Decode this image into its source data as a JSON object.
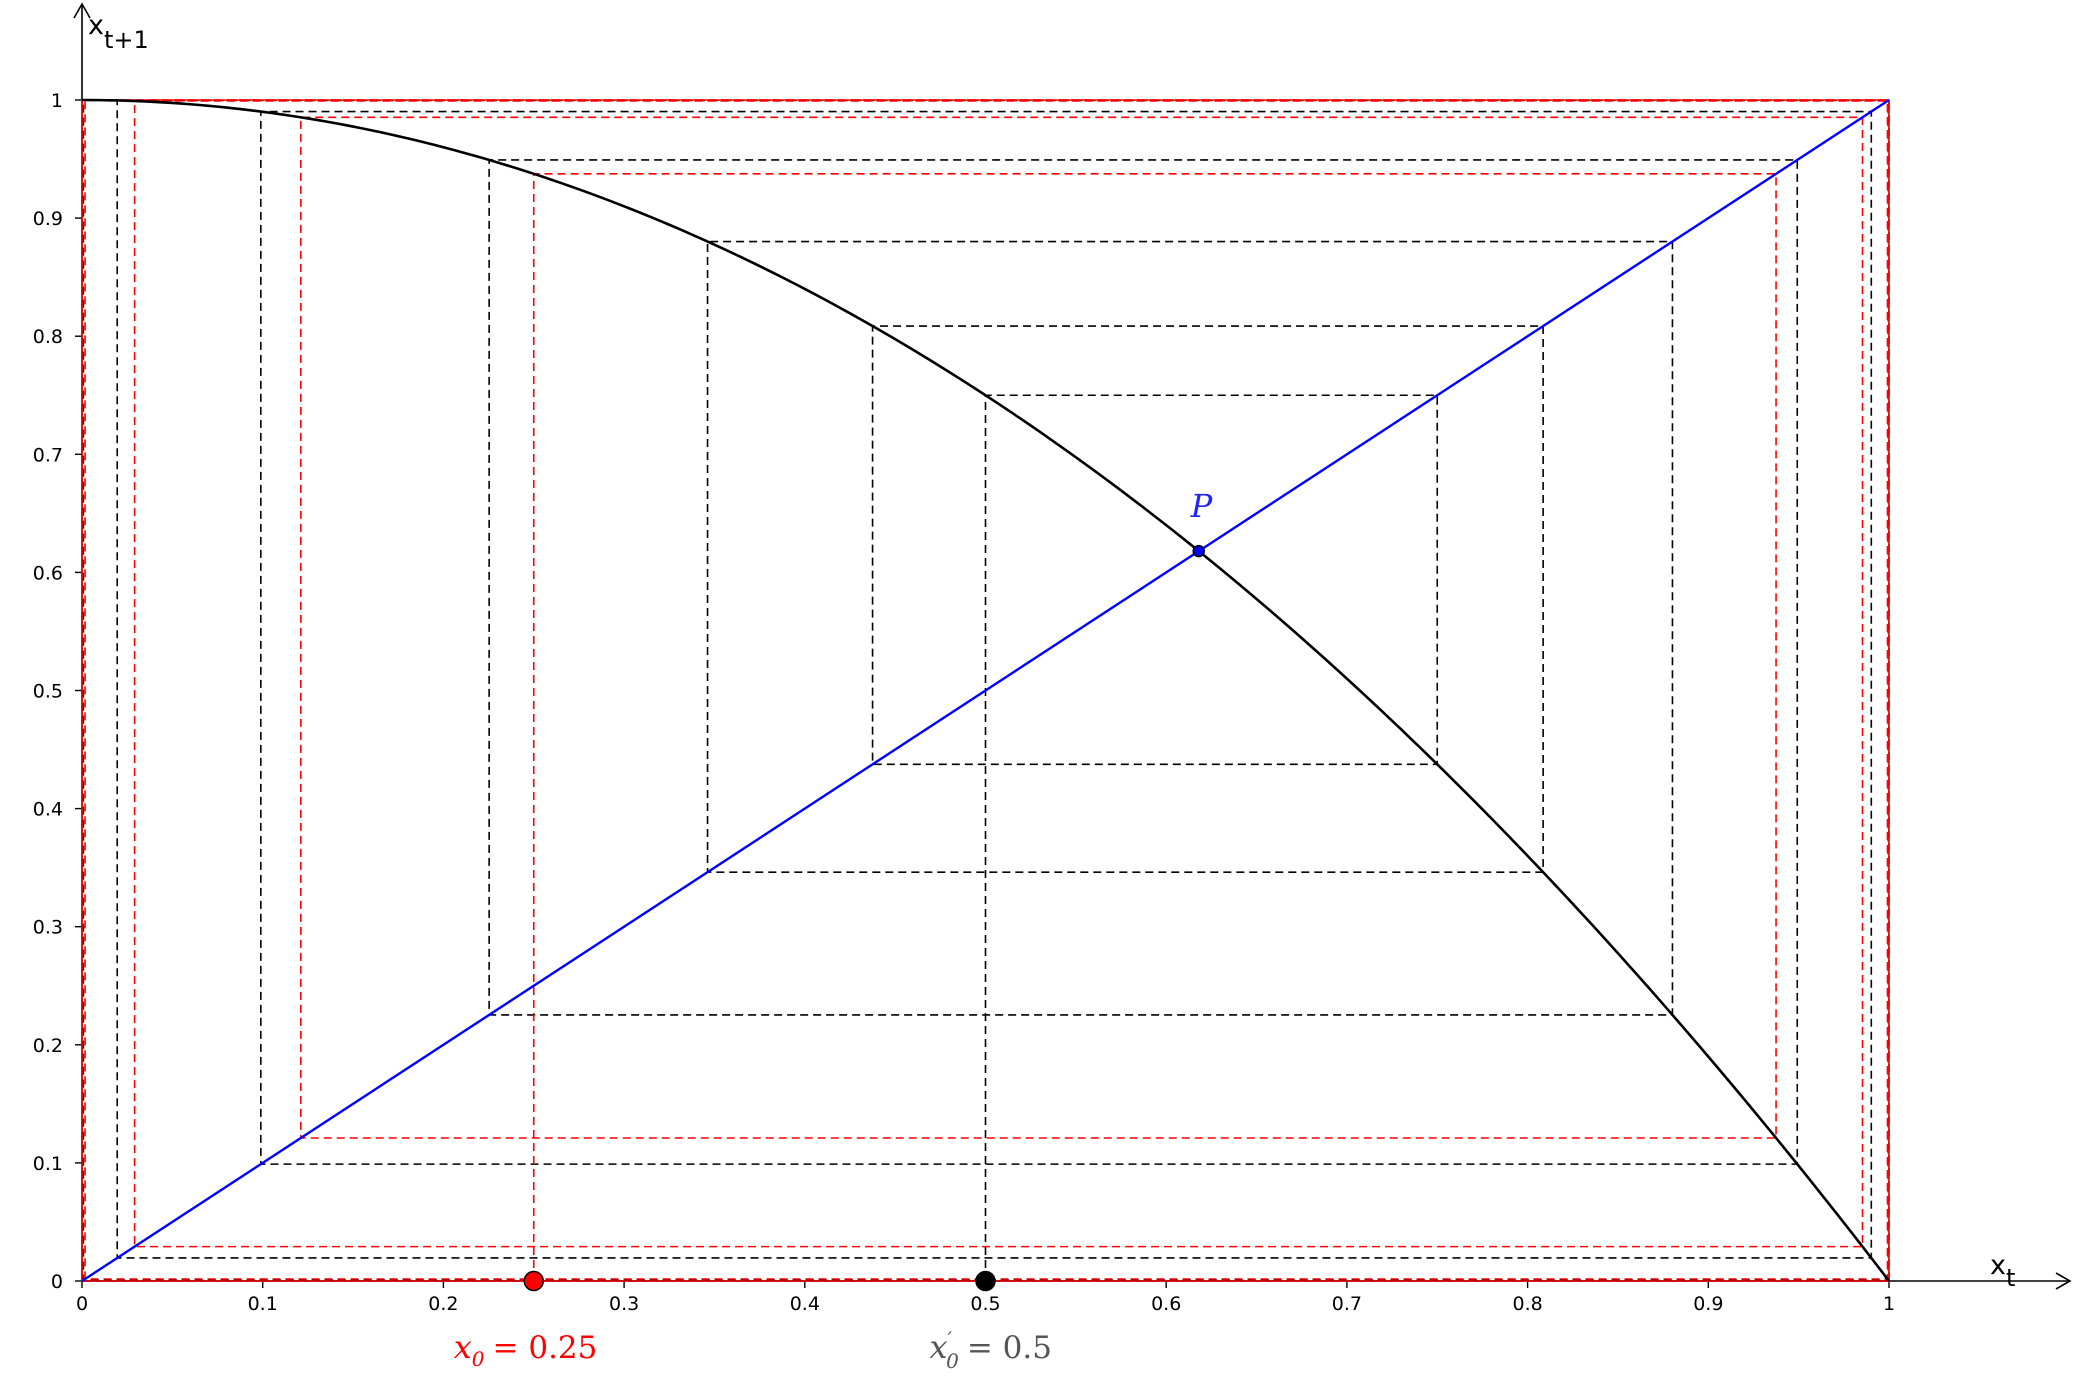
{
  "chart_data": {
    "type": "line",
    "title": "",
    "xlabel": {
      "base": "x",
      "sub": "t"
    },
    "ylabel": {
      "base": "x",
      "sub": "t+1"
    },
    "xlim": [
      0,
      1
    ],
    "ylim": [
      0,
      1
    ],
    "x_ticks": [
      0,
      0.1,
      0.2,
      0.3,
      0.4,
      0.5,
      0.6,
      0.7,
      0.8,
      0.9,
      1
    ],
    "y_ticks": [
      0,
      0.1,
      0.2,
      0.3,
      0.4,
      0.5,
      0.6,
      0.7,
      0.8,
      0.9,
      1
    ],
    "x_tick_labels": [
      "0",
      "0.1",
      "0.2",
      "0.3",
      "0.4",
      "0.5",
      "0.6",
      "0.7",
      "0.8",
      "0.9",
      "1"
    ],
    "y_tick_labels": [
      "0",
      "0.1",
      "0.2",
      "0.3",
      "0.4",
      "0.5",
      "0.6",
      "0.7",
      "0.8",
      "0.9",
      "1"
    ],
    "grid": false,
    "series": [
      {
        "kind": "function",
        "formula": "1 - x^2",
        "color": "#000000",
        "style": "solid"
      },
      {
        "kind": "function",
        "formula": "x",
        "color": "#0000ff",
        "style": "solid"
      },
      {
        "kind": "cobweb",
        "x0": 0.5,
        "iterations": 14,
        "color": "#000000",
        "style": "dashed"
      },
      {
        "kind": "cobweb",
        "x0": 0.25,
        "iterations": 14,
        "color": "#ff0000",
        "style": "dashed"
      }
    ],
    "points": [
      {
        "label": "P",
        "x": 0.618,
        "y": 0.618,
        "color": "#0000ff"
      },
      {
        "label": "x_0 = 0.25",
        "x": 0.25,
        "y": 0,
        "color": "#ff0000"
      },
      {
        "label": "x'_0 = 0.5",
        "x": 0.5,
        "y": 0,
        "color": "#000000"
      }
    ],
    "annotations": {
      "P": {
        "text": "P",
        "color": "#2222ff"
      },
      "x0_red": {
        "base": "x",
        "sub": "0",
        "value": "= 0.25",
        "color": "#ff0000"
      },
      "x0_black": {
        "base": "x",
        "prime": "′",
        "sub": "0",
        "value": "= 0.5",
        "color": "#555555"
      }
    }
  }
}
